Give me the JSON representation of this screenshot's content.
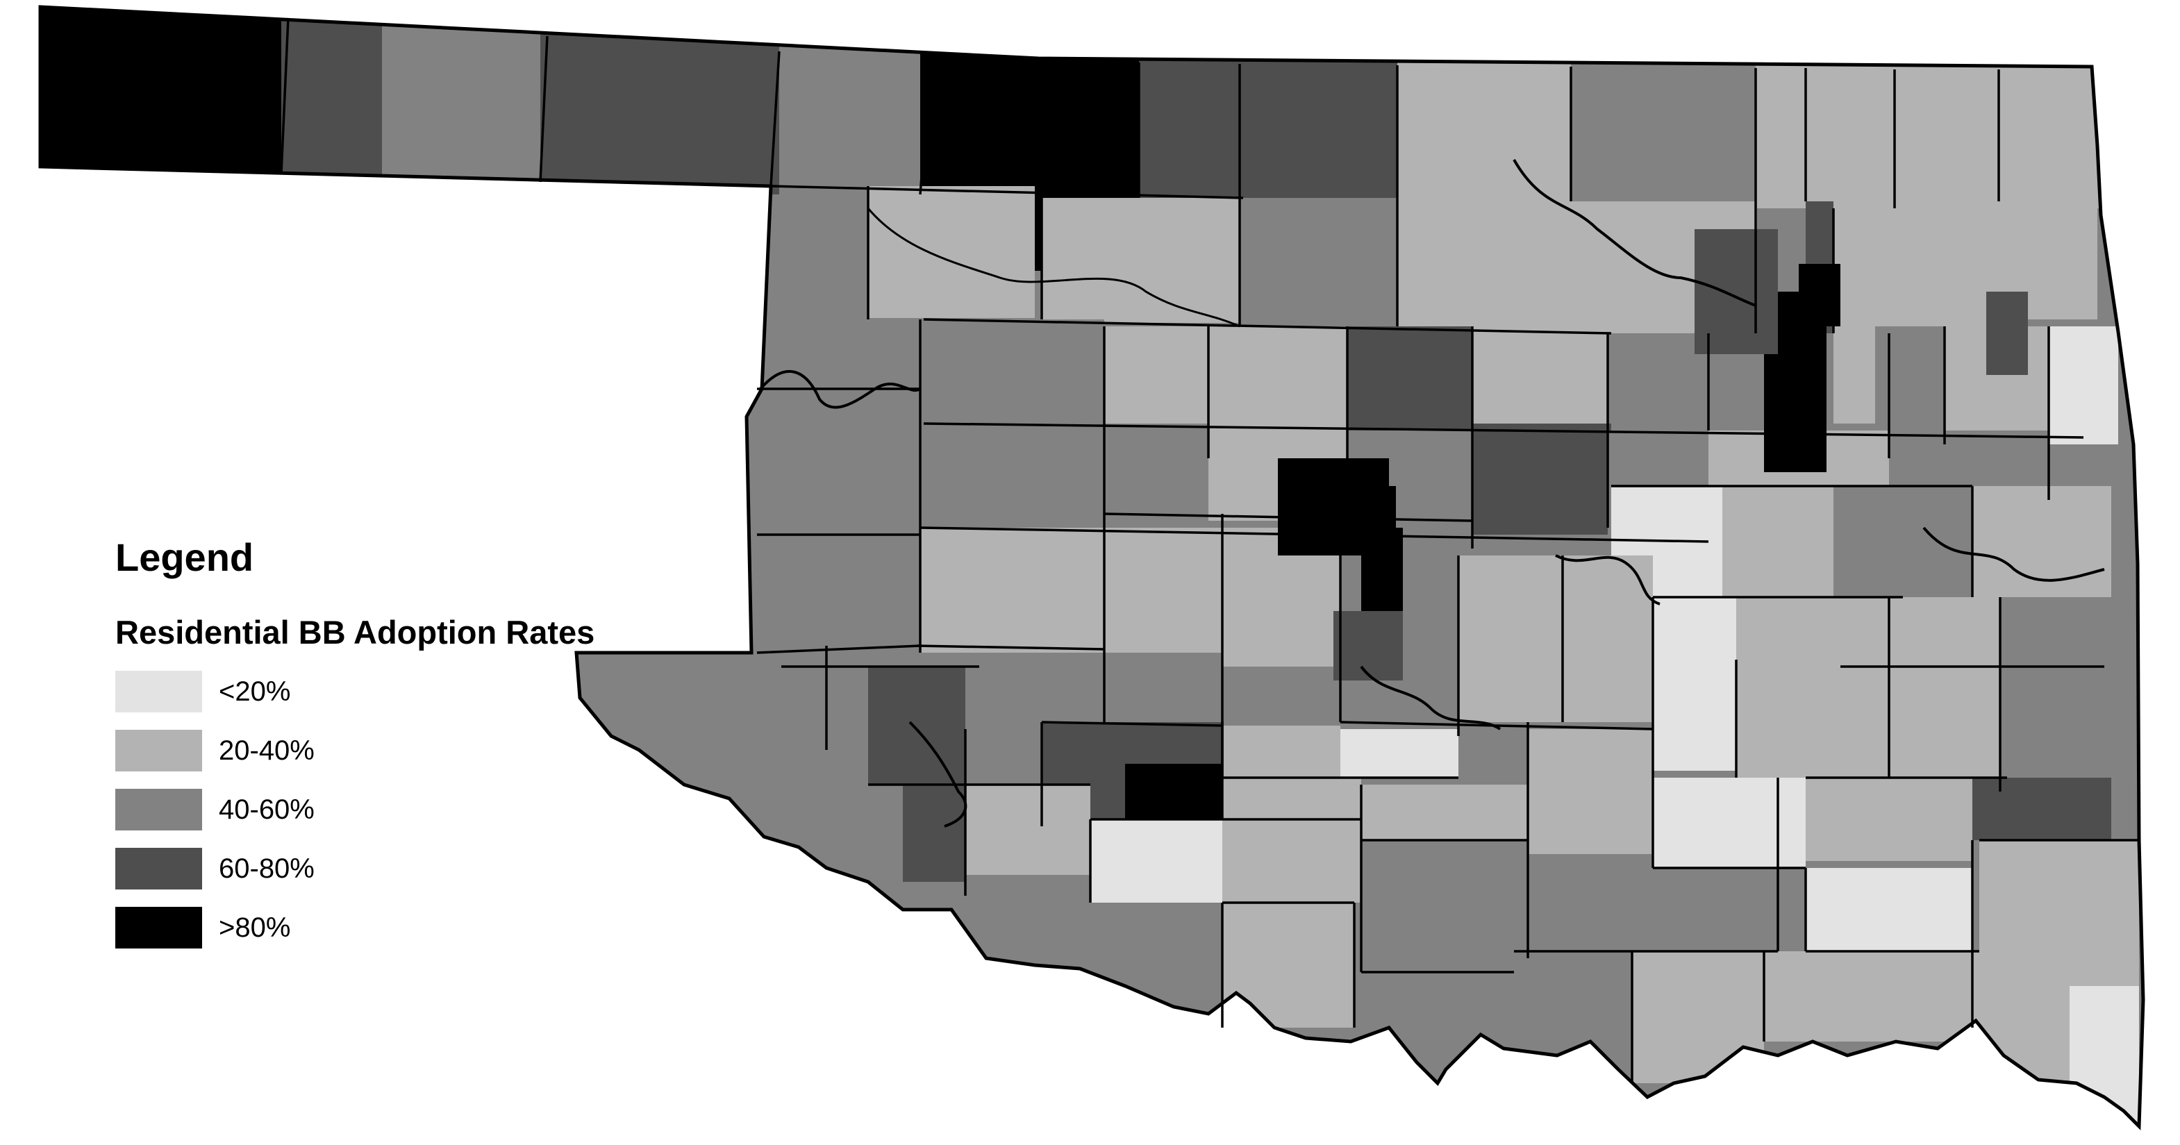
{
  "legend": {
    "title": "Legend",
    "subtitle": "Residential BB Adoption Rates",
    "classes": [
      {
        "label": "<20%",
        "color": "#e3e3e3"
      },
      {
        "label": "20-40%",
        "color": "#b3b3b3"
      },
      {
        "label": "40-60%",
        "color": "#828282"
      },
      {
        "label": "60-80%",
        "color": "#4e4e4e"
      },
      {
        "label": ">80%",
        "color": "#000000"
      }
    ]
  },
  "map": {
    "region": "Oklahoma",
    "unit": "census tract",
    "boundary_color": "#000000",
    "background": "#ffffff"
  }
}
